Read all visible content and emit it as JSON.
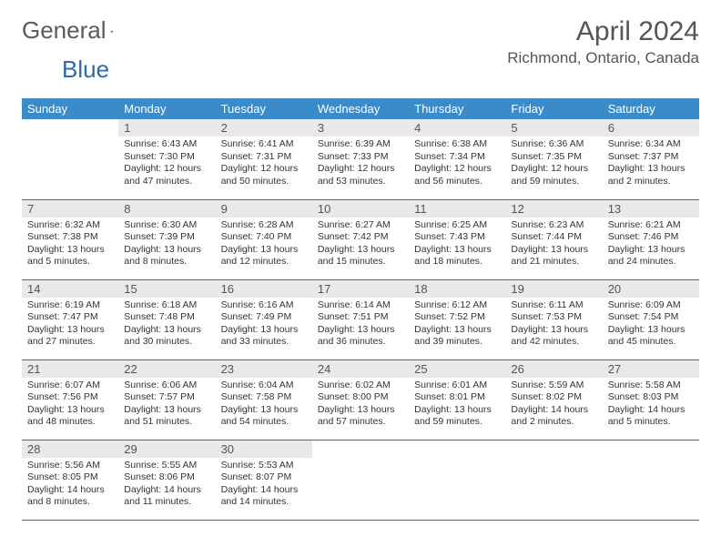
{
  "brand": {
    "word1": "General",
    "word2": "Blue"
  },
  "title": "April 2024",
  "location": "Richmond, Ontario, Canada",
  "colors": {
    "header_bg": "#3b8bc9",
    "header_text": "#ffffff",
    "daynum_bg": "#e9e9e9",
    "row_border": "#2f6ba8",
    "body_text": "#333333",
    "title_text": "#555555"
  },
  "daysOfWeek": [
    "Sunday",
    "Monday",
    "Tuesday",
    "Wednesday",
    "Thursday",
    "Friday",
    "Saturday"
  ],
  "weeks": [
    [
      null,
      {
        "n": "1",
        "sr": "6:43 AM",
        "ss": "7:30 PM",
        "dl": "12 hours and 47 minutes."
      },
      {
        "n": "2",
        "sr": "6:41 AM",
        "ss": "7:31 PM",
        "dl": "12 hours and 50 minutes."
      },
      {
        "n": "3",
        "sr": "6:39 AM",
        "ss": "7:33 PM",
        "dl": "12 hours and 53 minutes."
      },
      {
        "n": "4",
        "sr": "6:38 AM",
        "ss": "7:34 PM",
        "dl": "12 hours and 56 minutes."
      },
      {
        "n": "5",
        "sr": "6:36 AM",
        "ss": "7:35 PM",
        "dl": "12 hours and 59 minutes."
      },
      {
        "n": "6",
        "sr": "6:34 AM",
        "ss": "7:37 PM",
        "dl": "13 hours and 2 minutes."
      }
    ],
    [
      {
        "n": "7",
        "sr": "6:32 AM",
        "ss": "7:38 PM",
        "dl": "13 hours and 5 minutes."
      },
      {
        "n": "8",
        "sr": "6:30 AM",
        "ss": "7:39 PM",
        "dl": "13 hours and 8 minutes."
      },
      {
        "n": "9",
        "sr": "6:28 AM",
        "ss": "7:40 PM",
        "dl": "13 hours and 12 minutes."
      },
      {
        "n": "10",
        "sr": "6:27 AM",
        "ss": "7:42 PM",
        "dl": "13 hours and 15 minutes."
      },
      {
        "n": "11",
        "sr": "6:25 AM",
        "ss": "7:43 PM",
        "dl": "13 hours and 18 minutes."
      },
      {
        "n": "12",
        "sr": "6:23 AM",
        "ss": "7:44 PM",
        "dl": "13 hours and 21 minutes."
      },
      {
        "n": "13",
        "sr": "6:21 AM",
        "ss": "7:46 PM",
        "dl": "13 hours and 24 minutes."
      }
    ],
    [
      {
        "n": "14",
        "sr": "6:19 AM",
        "ss": "7:47 PM",
        "dl": "13 hours and 27 minutes."
      },
      {
        "n": "15",
        "sr": "6:18 AM",
        "ss": "7:48 PM",
        "dl": "13 hours and 30 minutes."
      },
      {
        "n": "16",
        "sr": "6:16 AM",
        "ss": "7:49 PM",
        "dl": "13 hours and 33 minutes."
      },
      {
        "n": "17",
        "sr": "6:14 AM",
        "ss": "7:51 PM",
        "dl": "13 hours and 36 minutes."
      },
      {
        "n": "18",
        "sr": "6:12 AM",
        "ss": "7:52 PM",
        "dl": "13 hours and 39 minutes."
      },
      {
        "n": "19",
        "sr": "6:11 AM",
        "ss": "7:53 PM",
        "dl": "13 hours and 42 minutes."
      },
      {
        "n": "20",
        "sr": "6:09 AM",
        "ss": "7:54 PM",
        "dl": "13 hours and 45 minutes."
      }
    ],
    [
      {
        "n": "21",
        "sr": "6:07 AM",
        "ss": "7:56 PM",
        "dl": "13 hours and 48 minutes."
      },
      {
        "n": "22",
        "sr": "6:06 AM",
        "ss": "7:57 PM",
        "dl": "13 hours and 51 minutes."
      },
      {
        "n": "23",
        "sr": "6:04 AM",
        "ss": "7:58 PM",
        "dl": "13 hours and 54 minutes."
      },
      {
        "n": "24",
        "sr": "6:02 AM",
        "ss": "8:00 PM",
        "dl": "13 hours and 57 minutes."
      },
      {
        "n": "25",
        "sr": "6:01 AM",
        "ss": "8:01 PM",
        "dl": "13 hours and 59 minutes."
      },
      {
        "n": "26",
        "sr": "5:59 AM",
        "ss": "8:02 PM",
        "dl": "14 hours and 2 minutes."
      },
      {
        "n": "27",
        "sr": "5:58 AM",
        "ss": "8:03 PM",
        "dl": "14 hours and 5 minutes."
      }
    ],
    [
      {
        "n": "28",
        "sr": "5:56 AM",
        "ss": "8:05 PM",
        "dl": "14 hours and 8 minutes."
      },
      {
        "n": "29",
        "sr": "5:55 AM",
        "ss": "8:06 PM",
        "dl": "14 hours and 11 minutes."
      },
      {
        "n": "30",
        "sr": "5:53 AM",
        "ss": "8:07 PM",
        "dl": "14 hours and 14 minutes."
      },
      null,
      null,
      null,
      null
    ]
  ],
  "labels": {
    "sunrise": "Sunrise:",
    "sunset": "Sunset:",
    "daylight": "Daylight:"
  }
}
